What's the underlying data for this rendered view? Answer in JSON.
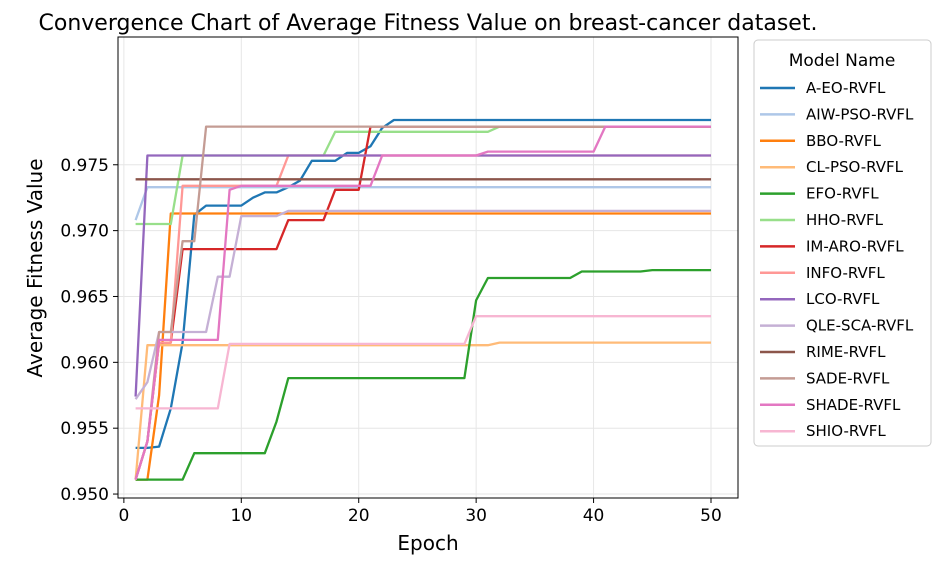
{
  "chart_data": {
    "type": "line",
    "title": "Convergence Chart of Average Fitness Value on breast-cancer dataset.",
    "xlabel": "Epoch",
    "ylabel": "Average Fitness Value",
    "xlim": [
      -0.5,
      52.3
    ],
    "ylim": [
      0.9497,
      0.9847
    ],
    "xticks": [
      0,
      10,
      20,
      30,
      40,
      50
    ],
    "xtick_labels": [
      "0",
      "10",
      "20",
      "30",
      "40",
      "50"
    ],
    "yticks": [
      0.95,
      0.955,
      0.96,
      0.965,
      0.97,
      0.975
    ],
    "ytick_labels": [
      "0.950",
      "0.955",
      "0.960",
      "0.965",
      "0.970",
      "0.975"
    ],
    "grid": true,
    "legend": {
      "title": "Model Name",
      "placement": "right-outside-top"
    },
    "x": [
      1,
      2,
      3,
      4,
      5,
      6,
      7,
      8,
      9,
      10,
      11,
      12,
      13,
      14,
      15,
      16,
      17,
      18,
      19,
      20,
      21,
      22,
      23,
      24,
      25,
      26,
      27,
      28,
      29,
      30,
      31,
      32,
      33,
      34,
      35,
      36,
      37,
      38,
      39,
      40,
      41,
      42,
      43,
      44,
      45,
      46,
      47,
      48,
      49,
      50
    ],
    "series": [
      {
        "name": "A-EO-RVFL",
        "color": "#1f77b4",
        "values": [
          0.9535,
          0.9535,
          0.9536,
          0.9565,
          0.9615,
          0.9712,
          0.9719,
          0.9719,
          0.9719,
          0.9719,
          0.9725,
          0.9729,
          0.9729,
          0.9733,
          0.9738,
          0.9753,
          0.9753,
          0.9753,
          0.9759,
          0.9759,
          0.9764,
          0.9778,
          0.9784,
          0.9784,
          0.9784,
          0.9784,
          0.9784,
          0.9784,
          0.9784,
          0.9784,
          0.9784,
          0.9784,
          0.9784,
          0.9784,
          0.9784,
          0.9784,
          0.9784,
          0.9784,
          0.9784,
          0.9784,
          0.9784,
          0.9784,
          0.9784,
          0.9784,
          0.9784,
          0.9784,
          0.9784,
          0.9784,
          0.9784,
          0.9784
        ]
      },
      {
        "name": "AIW-PSO-RVFL",
        "color": "#aec7e8",
        "values": [
          0.9708,
          0.9733,
          0.9733,
          0.9733,
          0.9733,
          0.9733,
          0.9733,
          0.9733,
          0.9733,
          0.9733,
          0.9733,
          0.9733,
          0.9733,
          0.9733,
          0.9733,
          0.9733,
          0.9733,
          0.9733,
          0.9733,
          0.9733,
          0.9733,
          0.9733,
          0.9733,
          0.9733,
          0.9733,
          0.9733,
          0.9733,
          0.9733,
          0.9733,
          0.9733,
          0.9733,
          0.9733,
          0.9733,
          0.9733,
          0.9733,
          0.9733,
          0.9733,
          0.9733,
          0.9733,
          0.9733,
          0.9733,
          0.9733,
          0.9733,
          0.9733,
          0.9733,
          0.9733,
          0.9733,
          0.9733,
          0.9733,
          0.9733
        ]
      },
      {
        "name": "BBO-RVFL",
        "color": "#ff7f0e",
        "values": [
          0.9511,
          0.9511,
          0.9575,
          0.9713,
          0.9713,
          0.9713,
          0.9713,
          0.9713,
          0.9713,
          0.9713,
          0.9713,
          0.9713,
          0.9713,
          0.9713,
          0.9713,
          0.9713,
          0.9713,
          0.9713,
          0.9713,
          0.9713,
          0.9713,
          0.9713,
          0.9713,
          0.9713,
          0.9713,
          0.9713,
          0.9713,
          0.9713,
          0.9713,
          0.9713,
          0.9713,
          0.9713,
          0.9713,
          0.9713,
          0.9713,
          0.9713,
          0.9713,
          0.9713,
          0.9713,
          0.9713,
          0.9713,
          0.9713,
          0.9713,
          0.9713,
          0.9713,
          0.9713,
          0.9713,
          0.9713,
          0.9713,
          0.9713
        ]
      },
      {
        "name": "CL-PSO-RVFL",
        "color": "#ffbb78",
        "values": [
          0.9511,
          0.9613,
          0.9613,
          0.9613,
          0.9613,
          0.9613,
          0.9613,
          0.9613,
          0.9613,
          0.9613,
          0.9613,
          0.9613,
          0.9613,
          0.9613,
          0.9613,
          0.9613,
          0.9613,
          0.9613,
          0.9613,
          0.9613,
          0.9613,
          0.9613,
          0.9613,
          0.9613,
          0.9613,
          0.9613,
          0.9613,
          0.9613,
          0.9613,
          0.9613,
          0.9613,
          0.9615,
          0.9615,
          0.9615,
          0.9615,
          0.9615,
          0.9615,
          0.9615,
          0.9615,
          0.9615,
          0.9615,
          0.9615,
          0.9615,
          0.9615,
          0.9615,
          0.9615,
          0.9615,
          0.9615,
          0.9615,
          0.9615
        ]
      },
      {
        "name": "EFO-RVFL",
        "color": "#2ca02c",
        "values": [
          0.9511,
          0.9511,
          0.9511,
          0.9511,
          0.9511,
          0.9531,
          0.9531,
          0.9531,
          0.9531,
          0.9531,
          0.9531,
          0.9531,
          0.9555,
          0.9588,
          0.9588,
          0.9588,
          0.9588,
          0.9588,
          0.9588,
          0.9588,
          0.9588,
          0.9588,
          0.9588,
          0.9588,
          0.9588,
          0.9588,
          0.9588,
          0.9588,
          0.9588,
          0.9647,
          0.9664,
          0.9664,
          0.9664,
          0.9664,
          0.9664,
          0.9664,
          0.9664,
          0.9664,
          0.9669,
          0.9669,
          0.9669,
          0.9669,
          0.9669,
          0.9669,
          0.967,
          0.967,
          0.967,
          0.967,
          0.967,
          0.967
        ]
      },
      {
        "name": "HHO-RVFL",
        "color": "#98df8a",
        "values": [
          0.9705,
          0.9705,
          0.9705,
          0.9705,
          0.9757,
          0.9757,
          0.9757,
          0.9757,
          0.9757,
          0.9757,
          0.9757,
          0.9757,
          0.9757,
          0.9757,
          0.9757,
          0.9757,
          0.9757,
          0.9775,
          0.9775,
          0.9775,
          0.9775,
          0.9775,
          0.9775,
          0.9775,
          0.9775,
          0.9775,
          0.9775,
          0.9775,
          0.9775,
          0.9775,
          0.9775,
          0.9779,
          0.9779,
          0.9779,
          0.9779,
          0.9779,
          0.9779,
          0.9779,
          0.9779,
          0.9779,
          0.9779,
          0.9779,
          0.9779,
          0.9779,
          0.9779,
          0.9779,
          0.9779,
          0.9779,
          0.9779,
          0.9779
        ]
      },
      {
        "name": "IM-ARO-RVFL",
        "color": "#d62728",
        "values": [
          0.9511,
          0.954,
          0.9615,
          0.9615,
          0.9686,
          0.9686,
          0.9686,
          0.9686,
          0.9686,
          0.9686,
          0.9686,
          0.9686,
          0.9686,
          0.9708,
          0.9708,
          0.9708,
          0.9708,
          0.9731,
          0.9731,
          0.9731,
          0.9779,
          0.9779,
          0.9779,
          0.9779,
          0.9779,
          0.9779,
          0.9779,
          0.9779,
          0.9779,
          0.9779,
          0.9779,
          0.9779,
          0.9779,
          0.9779,
          0.9779,
          0.9779,
          0.9779,
          0.9779,
          0.9779,
          0.9779,
          0.9779,
          0.9779,
          0.9779,
          0.9779,
          0.9779,
          0.9779,
          0.9779,
          0.9779,
          0.9779,
          0.9779
        ]
      },
      {
        "name": "INFO-RVFL",
        "color": "#ff9896",
        "values": [
          0.9511,
          0.954,
          0.9615,
          0.9615,
          0.9734,
          0.9734,
          0.9734,
          0.9734,
          0.9734,
          0.9734,
          0.9734,
          0.9734,
          0.9734,
          0.9757,
          0.9757,
          0.9757,
          0.9757,
          0.9757,
          0.9757,
          0.9757,
          0.9757,
          0.9757,
          0.9757,
          0.9757,
          0.9757,
          0.9757,
          0.9757,
          0.9757,
          0.9757,
          0.9757,
          0.9757,
          0.9757,
          0.9757,
          0.9757,
          0.9757,
          0.9757,
          0.9757,
          0.9757,
          0.9757,
          0.9757,
          0.9757,
          0.9757,
          0.9757,
          0.9757,
          0.9757,
          0.9757,
          0.9757,
          0.9757,
          0.9757,
          0.9757
        ]
      },
      {
        "name": "LCO-RVFL",
        "color": "#9467bd",
        "values": [
          0.9574,
          0.9757,
          0.9757,
          0.9757,
          0.9757,
          0.9757,
          0.9757,
          0.9757,
          0.9757,
          0.9757,
          0.9757,
          0.9757,
          0.9757,
          0.9757,
          0.9757,
          0.9757,
          0.9757,
          0.9757,
          0.9757,
          0.9757,
          0.9757,
          0.9757,
          0.9757,
          0.9757,
          0.9757,
          0.9757,
          0.9757,
          0.9757,
          0.9757,
          0.9757,
          0.9757,
          0.9757,
          0.9757,
          0.9757,
          0.9757,
          0.9757,
          0.9757,
          0.9757,
          0.9757,
          0.9757,
          0.9757,
          0.9757,
          0.9757,
          0.9757,
          0.9757,
          0.9757,
          0.9757,
          0.9757,
          0.9757,
          0.9757
        ]
      },
      {
        "name": "QLE-SCA-RVFL",
        "color": "#c5b0d5",
        "values": [
          0.9572,
          0.9585,
          0.9623,
          0.9623,
          0.9623,
          0.9623,
          0.9623,
          0.9665,
          0.9665,
          0.9711,
          0.9711,
          0.9711,
          0.9711,
          0.9715,
          0.9715,
          0.9715,
          0.9715,
          0.9715,
          0.9715,
          0.9715,
          0.9715,
          0.9715,
          0.9715,
          0.9715,
          0.9715,
          0.9715,
          0.9715,
          0.9715,
          0.9715,
          0.9715,
          0.9715,
          0.9715,
          0.9715,
          0.9715,
          0.9715,
          0.9715,
          0.9715,
          0.9715,
          0.9715,
          0.9715,
          0.9715,
          0.9715,
          0.9715,
          0.9715,
          0.9715,
          0.9715,
          0.9715,
          0.9715,
          0.9715,
          0.9715
        ]
      },
      {
        "name": "RIME-RVFL",
        "color": "#8c564b",
        "values": [
          0.9739,
          0.9739,
          0.9739,
          0.9739,
          0.9739,
          0.9739,
          0.9739,
          0.9739,
          0.9739,
          0.9739,
          0.9739,
          0.9739,
          0.9739,
          0.9739,
          0.9739,
          0.9739,
          0.9739,
          0.9739,
          0.9739,
          0.9739,
          0.9739,
          0.9739,
          0.9739,
          0.9739,
          0.9739,
          0.9739,
          0.9739,
          0.9739,
          0.9739,
          0.9739,
          0.9739,
          0.9739,
          0.9739,
          0.9739,
          0.9739,
          0.9739,
          0.9739,
          0.9739,
          0.9739,
          0.9739,
          0.9739,
          0.9739,
          0.9739,
          0.9739,
          0.9739,
          0.9739,
          0.9739,
          0.9739,
          0.9739,
          0.9739
        ]
      },
      {
        "name": "SADE-RVFL",
        "color": "#c49c94",
        "values": [
          0.9511,
          0.954,
          0.9623,
          0.9623,
          0.9692,
          0.9692,
          0.9779,
          0.9779,
          0.9779,
          0.9779,
          0.9779,
          0.9779,
          0.9779,
          0.9779,
          0.9779,
          0.9779,
          0.9779,
          0.9779,
          0.9779,
          0.9779,
          0.9779,
          0.9779,
          0.9779,
          0.9779,
          0.9779,
          0.9779,
          0.9779,
          0.9779,
          0.9779,
          0.9779,
          0.9779,
          0.9779,
          0.9779,
          0.9779,
          0.9779,
          0.9779,
          0.9779,
          0.9779,
          0.9779,
          0.9779,
          0.9779,
          0.9779,
          0.9779,
          0.9779,
          0.9779,
          0.9779,
          0.9779,
          0.9779,
          0.9779,
          0.9779
        ]
      },
      {
        "name": "SHADE-RVFL",
        "color": "#e377c2",
        "values": [
          0.9511,
          0.954,
          0.9617,
          0.9617,
          0.9617,
          0.9617,
          0.9617,
          0.9617,
          0.9731,
          0.9734,
          0.9734,
          0.9734,
          0.9734,
          0.9734,
          0.9734,
          0.9734,
          0.9734,
          0.9734,
          0.9734,
          0.9734,
          0.9734,
          0.9757,
          0.9757,
          0.9757,
          0.9757,
          0.9757,
          0.9757,
          0.9757,
          0.9757,
          0.9757,
          0.976,
          0.976,
          0.976,
          0.976,
          0.976,
          0.976,
          0.976,
          0.976,
          0.976,
          0.976,
          0.9779,
          0.9779,
          0.9779,
          0.9779,
          0.9779,
          0.9779,
          0.9779,
          0.9779,
          0.9779,
          0.9779
        ]
      },
      {
        "name": "SHIO-RVFL",
        "color": "#f7b6d2",
        "values": [
          0.9565,
          0.9565,
          0.9565,
          0.9565,
          0.9565,
          0.9565,
          0.9565,
          0.9565,
          0.9614,
          0.9614,
          0.9614,
          0.9614,
          0.9614,
          0.9614,
          0.9614,
          0.9614,
          0.9614,
          0.9614,
          0.9614,
          0.9614,
          0.9614,
          0.9614,
          0.9614,
          0.9614,
          0.9614,
          0.9614,
          0.9614,
          0.9614,
          0.9614,
          0.9635,
          0.9635,
          0.9635,
          0.9635,
          0.9635,
          0.9635,
          0.9635,
          0.9635,
          0.9635,
          0.9635,
          0.9635,
          0.9635,
          0.9635,
          0.9635,
          0.9635,
          0.9635,
          0.9635,
          0.9635,
          0.9635,
          0.9635,
          0.9635
        ]
      }
    ]
  }
}
